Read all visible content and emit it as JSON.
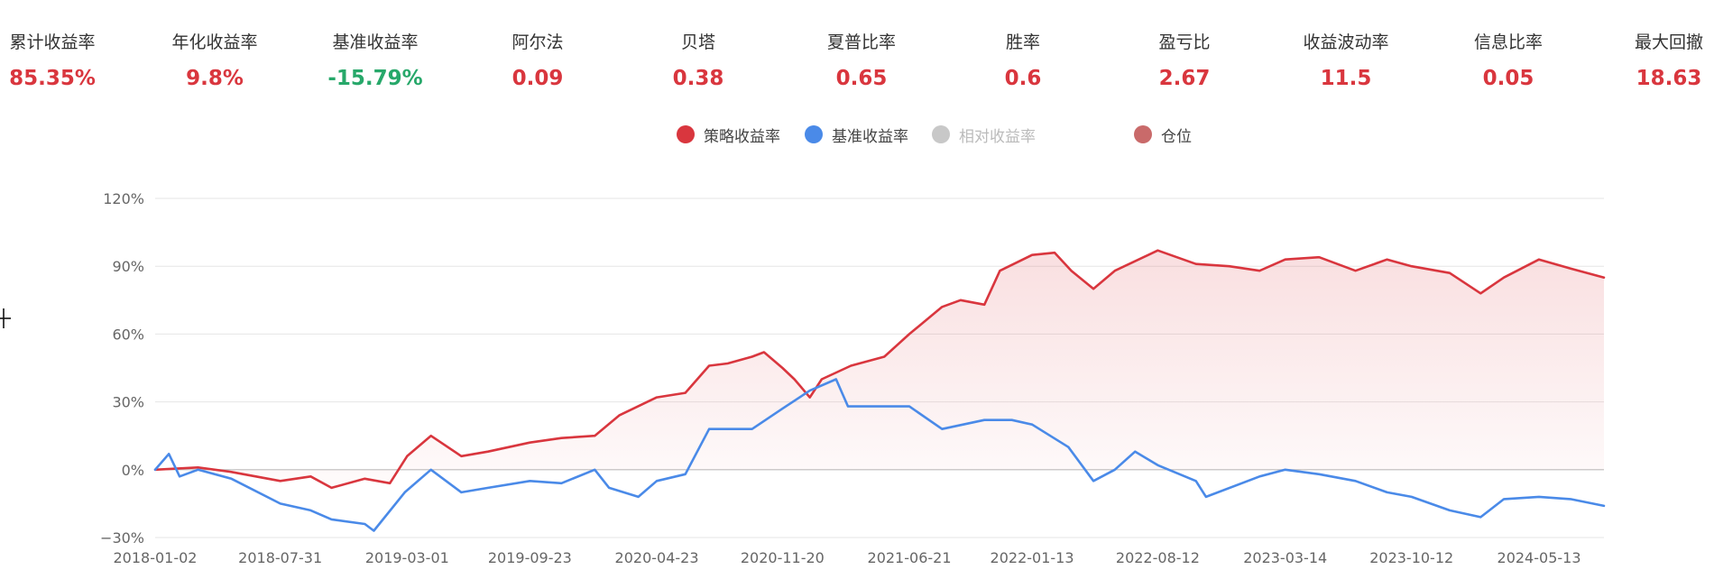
{
  "metrics": [
    {
      "label": "累计收益率",
      "value": "85.35%",
      "tone": "red"
    },
    {
      "label": "年化收益率",
      "value": "9.8%",
      "tone": "red"
    },
    {
      "label": "基准收益率",
      "value": "-15.79%",
      "tone": "green"
    },
    {
      "label": "阿尔法",
      "value": "0.09",
      "tone": "red"
    },
    {
      "label": "贝塔",
      "value": "0.38",
      "tone": "red"
    },
    {
      "label": "夏普比率",
      "value": "0.65",
      "tone": "red"
    },
    {
      "label": "胜率",
      "value": "0.6",
      "tone": "red"
    },
    {
      "label": "盈亏比",
      "value": "2.67",
      "tone": "red"
    },
    {
      "label": "收益波动率",
      "value": "11.5",
      "tone": "red"
    },
    {
      "label": "信息比率",
      "value": "0.05",
      "tone": "red"
    },
    {
      "label": "最大回撤",
      "value": "18.63",
      "tone": "red"
    }
  ],
  "colors": {
    "red": "#d9363e",
    "green": "#27a86a",
    "strategy": "#d9363e",
    "benchmark": "#4a8ae8",
    "relative": "#c8c8c8",
    "position": "#c96a6a",
    "grid": "#e6e6e6",
    "axis_text": "#666666"
  },
  "legend": [
    {
      "label": "策略收益率",
      "color": "#d9363e",
      "active": true
    },
    {
      "label": "基准收益率",
      "color": "#4a8ae8",
      "active": true
    },
    {
      "label": "相对收益率",
      "color": "#c8c8c8",
      "active": false
    },
    {
      "label": "仓位",
      "color": "#c96a6a",
      "active": true
    }
  ],
  "chart_data": {
    "type": "line",
    "title": "",
    "xlabel": "",
    "ylabel": "",
    "ylim": [
      -30,
      120
    ],
    "y_ticks": [
      "120%",
      "90%",
      "60%",
      "30%",
      "0%",
      "−30%"
    ],
    "y_tick_values": [
      120,
      90,
      60,
      30,
      0,
      -30
    ],
    "x_ticks": [
      "2018-01-02",
      "2018-07-31",
      "2019-03-01",
      "2019-09-23",
      "2020-04-23",
      "2020-11-20",
      "2021-06-21",
      "2022-01-13",
      "2022-08-12",
      "2023-03-14",
      "2023-10-12",
      "2024-05-13"
    ],
    "x_range": [
      "2018-01-02",
      "2024-08-30"
    ],
    "grid": true,
    "legend_position": "top-center",
    "area_fill_under": "策略收益率",
    "series": [
      {
        "name": "策略收益率",
        "color": "#d9363e",
        "points": [
          [
            "2018-01-02",
            0
          ],
          [
            "2018-03-15",
            1
          ],
          [
            "2018-05-10",
            -1
          ],
          [
            "2018-07-31",
            -5
          ],
          [
            "2018-09-20",
            -3
          ],
          [
            "2018-10-25",
            -8
          ],
          [
            "2018-12-20",
            -4
          ],
          [
            "2019-01-31",
            -6
          ],
          [
            "2019-03-01",
            6
          ],
          [
            "2019-04-10",
            15
          ],
          [
            "2019-05-31",
            6
          ],
          [
            "2019-07-15",
            8
          ],
          [
            "2019-09-23",
            12
          ],
          [
            "2019-11-15",
            14
          ],
          [
            "2020-01-10",
            15
          ],
          [
            "2020-02-20",
            24
          ],
          [
            "2020-04-23",
            32
          ],
          [
            "2020-06-10",
            34
          ],
          [
            "2020-07-20",
            46
          ],
          [
            "2020-08-20",
            47
          ],
          [
            "2020-09-30",
            50
          ],
          [
            "2020-10-20",
            52
          ],
          [
            "2020-11-20",
            45
          ],
          [
            "2020-12-10",
            40
          ],
          [
            "2021-01-05",
            32
          ],
          [
            "2021-01-25",
            40
          ],
          [
            "2021-03-15",
            46
          ],
          [
            "2021-05-10",
            50
          ],
          [
            "2021-06-21",
            60
          ],
          [
            "2021-08-15",
            72
          ],
          [
            "2021-09-15",
            75
          ],
          [
            "2021-10-25",
            73
          ],
          [
            "2021-11-20",
            88
          ],
          [
            "2022-01-13",
            95
          ],
          [
            "2022-02-20",
            96
          ],
          [
            "2022-03-20",
            88
          ],
          [
            "2022-04-26",
            80
          ],
          [
            "2022-06-01",
            88
          ],
          [
            "2022-08-12",
            97
          ],
          [
            "2022-10-15",
            91
          ],
          [
            "2022-12-10",
            90
          ],
          [
            "2023-01-30",
            88
          ],
          [
            "2023-03-14",
            93
          ],
          [
            "2023-05-10",
            94
          ],
          [
            "2023-07-10",
            88
          ],
          [
            "2023-09-01",
            93
          ],
          [
            "2023-10-12",
            90
          ],
          [
            "2023-12-15",
            87
          ],
          [
            "2024-02-05",
            78
          ],
          [
            "2024-03-15",
            85
          ],
          [
            "2024-05-13",
            93
          ],
          [
            "2024-07-05",
            89
          ],
          [
            "2024-08-30",
            85
          ]
        ]
      },
      {
        "name": "基准收益率",
        "color": "#4a8ae8",
        "points": [
          [
            "2018-01-02",
            0
          ],
          [
            "2018-01-25",
            7
          ],
          [
            "2018-02-12",
            -3
          ],
          [
            "2018-03-15",
            0
          ],
          [
            "2018-05-10",
            -4
          ],
          [
            "2018-07-31",
            -15
          ],
          [
            "2018-09-20",
            -18
          ],
          [
            "2018-10-25",
            -22
          ],
          [
            "2018-12-20",
            -24
          ],
          [
            "2019-01-04",
            -27
          ],
          [
            "2019-02-25",
            -10
          ],
          [
            "2019-04-10",
            0
          ],
          [
            "2019-05-31",
            -10
          ],
          [
            "2019-07-15",
            -8
          ],
          [
            "2019-09-23",
            -5
          ],
          [
            "2019-11-15",
            -6
          ],
          [
            "2020-01-10",
            0
          ],
          [
            "2020-02-03",
            -8
          ],
          [
            "2020-03-23",
            -12
          ],
          [
            "2020-04-23",
            -5
          ],
          [
            "2020-06-10",
            -2
          ],
          [
            "2020-07-20",
            18
          ],
          [
            "2020-09-30",
            18
          ],
          [
            "2020-11-20",
            27
          ],
          [
            "2021-01-05",
            35
          ],
          [
            "2021-02-18",
            40
          ],
          [
            "2021-03-10",
            28
          ],
          [
            "2021-05-10",
            28
          ],
          [
            "2021-06-21",
            28
          ],
          [
            "2021-08-15",
            18
          ],
          [
            "2021-10-25",
            22
          ],
          [
            "2021-12-10",
            22
          ],
          [
            "2022-01-13",
            20
          ],
          [
            "2022-03-15",
            10
          ],
          [
            "2022-04-26",
            -5
          ],
          [
            "2022-06-01",
            0
          ],
          [
            "2022-07-05",
            8
          ],
          [
            "2022-08-12",
            2
          ],
          [
            "2022-10-15",
            -5
          ],
          [
            "2022-11-01",
            -12
          ],
          [
            "2023-01-30",
            -3
          ],
          [
            "2023-03-14",
            0
          ],
          [
            "2023-05-10",
            -2
          ],
          [
            "2023-07-10",
            -5
          ],
          [
            "2023-09-01",
            -10
          ],
          [
            "2023-10-12",
            -12
          ],
          [
            "2023-12-15",
            -18
          ],
          [
            "2024-02-05",
            -21
          ],
          [
            "2024-03-15",
            -13
          ],
          [
            "2024-05-13",
            -12
          ],
          [
            "2024-07-05",
            -13
          ],
          [
            "2024-08-30",
            -16
          ]
        ]
      }
    ]
  }
}
